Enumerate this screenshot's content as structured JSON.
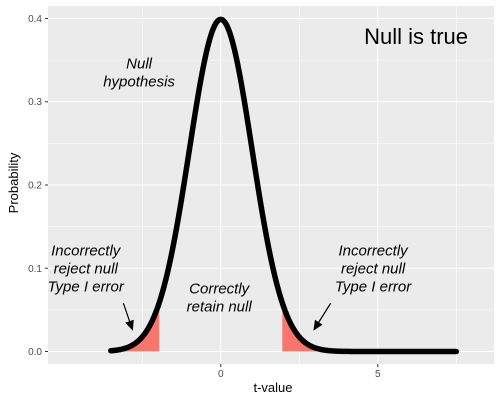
{
  "chart_data": {
    "type": "line",
    "title": "Null is true",
    "xlabel": "t-value",
    "ylabel": "Probability",
    "xlim": [
      -5.5,
      8.7
    ],
    "ylim": [
      -0.015,
      0.415
    ],
    "x_ticks": [
      0,
      5
    ],
    "x_tick_labels": [
      "0",
      "5"
    ],
    "y_ticks": [
      0.0,
      0.1,
      0.2,
      0.3,
      0.4
    ],
    "y_tick_labels": [
      "0.0",
      "0.1",
      "0.2",
      "0.3",
      "0.4"
    ],
    "grid": true,
    "background": "#EBEBEB",
    "grid_color": "#FFFFFF",
    "series": [
      {
        "distribution": "normal",
        "mean": 0,
        "sd": 1,
        "x_range": [
          -3.5,
          7.5
        ],
        "color": "#000000"
      }
    ],
    "shaded_regions": [
      {
        "x_range": [
          -3.5,
          -1.96
        ],
        "color": "#F8766D"
      },
      {
        "x_range": [
          1.96,
          3.5
        ],
        "color": "#F8766D"
      }
    ],
    "annotations": [
      {
        "lines": [
          "Null",
          "hypothesis"
        ],
        "x": -2.6,
        "y": 0.335
      },
      {
        "lines": [
          "Correctly",
          "retain null"
        ],
        "x": -0.05,
        "y": 0.065
      },
      {
        "lines": [
          "Incorrectly",
          "reject null",
          "Type I error"
        ],
        "x": -4.3,
        "y": 0.1
      },
      {
        "lines": [
          "Incorrectly",
          "reject null",
          "Type I error"
        ],
        "x": 4.85,
        "y": 0.1
      }
    ],
    "arrows": [
      {
        "from": [
          -3.1,
          0.058
        ],
        "to": [
          -2.8,
          0.025
        ]
      },
      {
        "from": [
          3.5,
          0.058
        ],
        "to": [
          2.95,
          0.025
        ]
      }
    ]
  }
}
